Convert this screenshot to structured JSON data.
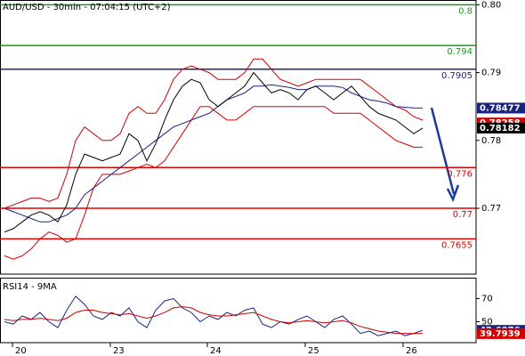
{
  "chart_data": [
    {
      "type": "line",
      "title": "AUD/USD - 30min - 07:04:15 (UTC+2)",
      "ylim": [
        0.7603,
        0.8007
      ],
      "yticks": [
        {
          "value": 0.8,
          "label": "0.80"
        },
        0.79,
        0.78,
        0.77
      ],
      "xlim": [
        -0.5,
        53
      ],
      "xticks": [
        {
          "value": 0.9,
          "label": "20"
        },
        {
          "value": 11.9,
          "label": "23"
        },
        {
          "value": 22.8,
          "label": "24"
        },
        {
          "value": 33.8,
          "label": "25"
        },
        {
          "value": 44.8,
          "label": "26"
        }
      ],
      "grid": false,
      "series": [
        {
          "color": "#d00000",
          "values": [
            0.77,
            0.7705,
            0.771,
            0.7715,
            0.7715,
            0.771,
            0.7715,
            0.775,
            0.78,
            0.782,
            0.781,
            0.78,
            0.78,
            0.781,
            0.784,
            0.785,
            0.784,
            0.784,
            0.786,
            0.789,
            0.7905,
            0.791,
            0.7905,
            0.79,
            0.789,
            0.789,
            0.789,
            0.79,
            0.792,
            0.792,
            0.7905,
            0.789,
            0.7885,
            0.788,
            0.7885,
            0.789,
            0.789,
            0.789,
            0.789,
            0.789,
            0.789,
            0.788,
            0.787,
            0.786,
            0.785,
            0.7845,
            0.7835,
            0.783
          ]
        },
        {
          "color": "#d00000",
          "values": [
            0.763,
            0.7625,
            0.763,
            0.764,
            0.7655,
            0.7665,
            0.766,
            0.765,
            0.7655,
            0.769,
            0.773,
            0.775,
            0.775,
            0.775,
            0.7755,
            0.776,
            0.7765,
            0.776,
            0.777,
            0.779,
            0.781,
            0.783,
            0.785,
            0.785,
            0.784,
            0.783,
            0.783,
            0.784,
            0.785,
            0.785,
            0.785,
            0.785,
            0.785,
            0.785,
            0.785,
            0.785,
            0.785,
            0.784,
            0.784,
            0.784,
            0.784,
            0.783,
            0.782,
            0.781,
            0.78,
            0.7795,
            0.779,
            0.779
          ]
        },
        {
          "color": "#1a237e",
          "values": [
            0.77,
            0.7695,
            0.769,
            0.7685,
            0.768,
            0.768,
            0.7685,
            0.769,
            0.77,
            0.772,
            0.773,
            0.774,
            0.775,
            0.776,
            0.777,
            0.778,
            0.779,
            0.78,
            0.781,
            0.782,
            0.7825,
            0.783,
            0.7835,
            0.784,
            0.785,
            0.786,
            0.7865,
            0.787,
            0.788,
            0.788,
            0.7882,
            0.788,
            0.7878,
            0.7875,
            0.7875,
            0.788,
            0.788,
            0.788,
            0.7878,
            0.787,
            0.7865,
            0.786,
            0.7858,
            0.7855,
            0.785,
            0.7849,
            0.7848,
            0.78477
          ]
        },
        {
          "color": "#000000",
          "values": [
            0.7665,
            0.767,
            0.768,
            0.769,
            0.7695,
            0.769,
            0.768,
            0.7705,
            0.775,
            0.778,
            0.7775,
            0.777,
            0.7775,
            0.778,
            0.781,
            0.78,
            0.777,
            0.7795,
            0.783,
            0.786,
            0.788,
            0.789,
            0.7885,
            0.786,
            0.785,
            0.786,
            0.787,
            0.788,
            0.79,
            0.7885,
            0.787,
            0.7875,
            0.787,
            0.786,
            0.7875,
            0.788,
            0.787,
            0.786,
            0.787,
            0.788,
            0.7865,
            0.785,
            0.784,
            0.7835,
            0.783,
            0.782,
            0.781,
            0.78182
          ]
        }
      ],
      "levels": [
        {
          "value": 0.8,
          "color": "#1a9a1a"
        },
        {
          "value": 0.794,
          "color": "#1a9a1a"
        },
        {
          "value": 0.7905,
          "color": "#1a237e"
        },
        {
          "value": 0.776,
          "color": "#e00000"
        },
        {
          "value": 0.77,
          "color": "#e00000"
        },
        {
          "value": 0.7655,
          "color": "#e00000"
        }
      ],
      "price_tags": [
        {
          "value": 0.78477,
          "color": "#1a237e"
        },
        {
          "value": 0.78258,
          "color": "#d00000"
        },
        {
          "value": 0.78182,
          "color": "#000000"
        }
      ]
    },
    {
      "type": "line",
      "title": "RSI14 - 9MA",
      "ylim": [
        32,
        88
      ],
      "yticks": [
        70,
        50
      ],
      "xlim": [
        -0.5,
        53
      ],
      "grid": false,
      "series": [
        {
          "color": "#1a237e",
          "values": [
            50,
            48,
            55,
            52,
            58,
            50,
            45,
            60,
            72,
            65,
            55,
            52,
            58,
            55,
            62,
            50,
            45,
            60,
            68,
            70,
            62,
            58,
            50,
            55,
            52,
            58,
            55,
            60,
            62,
            48,
            45,
            50,
            48,
            52,
            55,
            50,
            45,
            52,
            55,
            48,
            40,
            42,
            38,
            40,
            42,
            38,
            40,
            42.6076
          ]
        },
        {
          "color": "#d00000",
          "values": [
            52,
            51,
            52,
            52,
            53,
            52,
            51,
            53,
            58,
            60,
            60,
            58,
            57,
            56,
            57,
            55,
            53,
            55,
            58,
            62,
            63,
            62,
            58,
            56,
            55,
            55,
            56,
            57,
            58,
            55,
            52,
            50,
            49,
            50,
            51,
            50,
            49,
            50,
            51,
            49,
            46,
            44,
            42,
            41,
            40,
            40,
            39.8,
            39.7939
          ]
        }
      ],
      "price_tags": [
        {
          "value": 42.6076,
          "color": "#1a237e"
        },
        {
          "value": 39.7939,
          "color": "#d00000"
        }
      ]
    }
  ]
}
